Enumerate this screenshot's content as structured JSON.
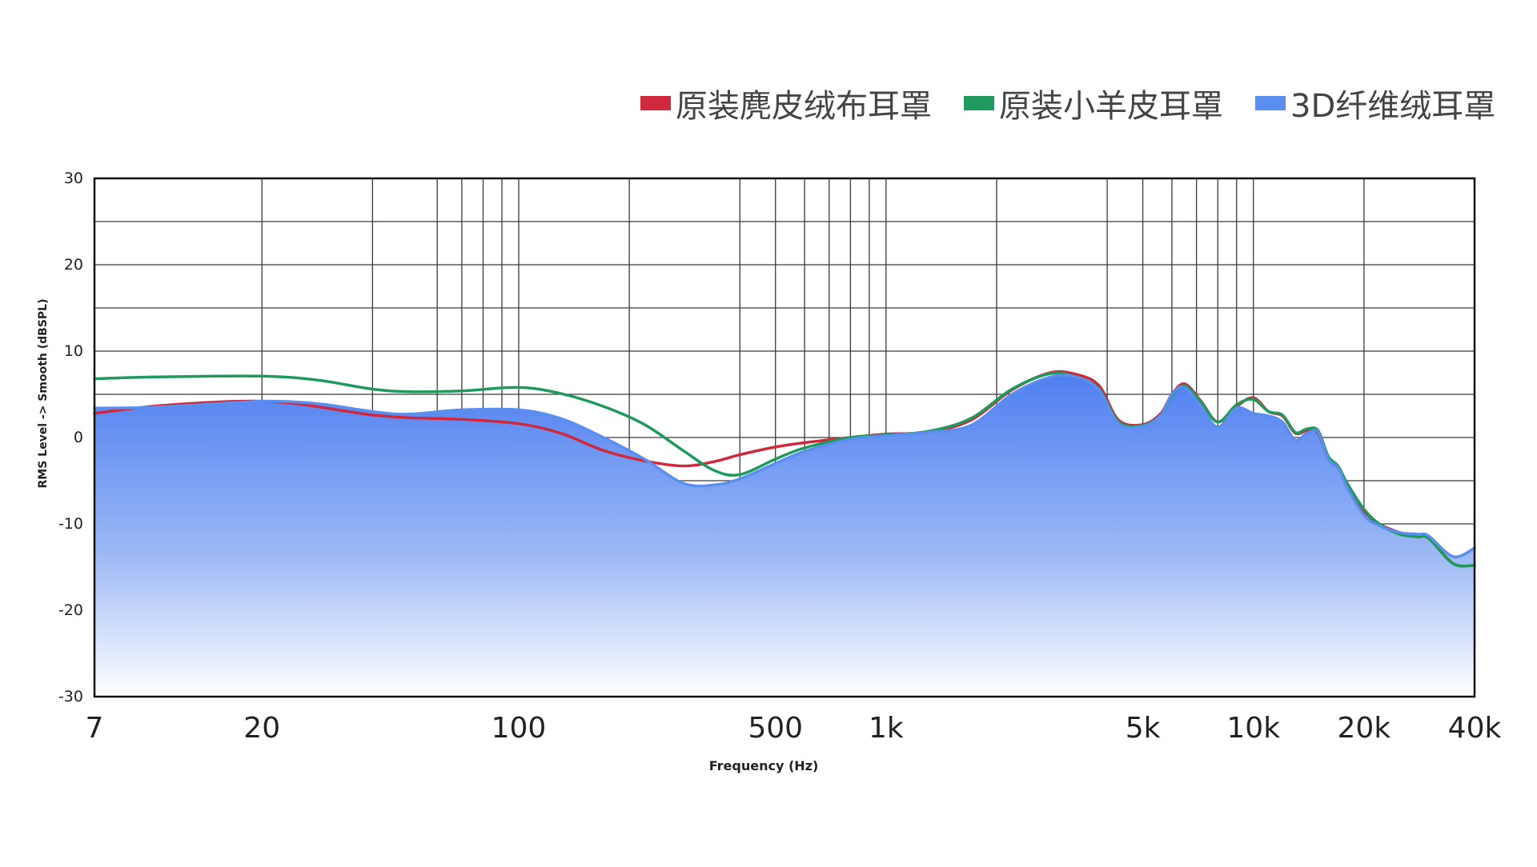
{
  "chart_data": {
    "type": "line",
    "title": "",
    "xlabel": "Frequency (Hz)",
    "ylabel": "RMS Level -> Smooth (dBSPL)",
    "x_scale": "log",
    "xlim": [
      7,
      40000
    ],
    "ylim": [
      -30,
      30
    ],
    "grid": true,
    "legend_position": "top-right",
    "x_tick_labels": [
      {
        "value": 7,
        "label": "7"
      },
      {
        "value": 20,
        "label": "20"
      },
      {
        "value": 100,
        "label": "100"
      },
      {
        "value": 500,
        "label": "500"
      },
      {
        "value": 1000,
        "label": "1k"
      },
      {
        "value": 5000,
        "label": "5k"
      },
      {
        "value": 10000,
        "label": "10k"
      },
      {
        "value": 20000,
        "label": "20k"
      },
      {
        "value": 40000,
        "label": "40k"
      }
    ],
    "x_grid_lines": [
      20,
      40,
      60,
      70,
      80,
      90,
      100,
      200,
      400,
      500,
      600,
      700,
      800,
      900,
      1000,
      2000,
      4000,
      5000,
      6000,
      7000,
      8000,
      9000,
      10000,
      20000
    ],
    "y_ticks": [
      30,
      20,
      10,
      0,
      -10,
      -20,
      -30
    ],
    "y_grid_lines": [
      25,
      20,
      15,
      10,
      5,
      0,
      -5,
      -10,
      -15,
      -20,
      -25
    ],
    "series": [
      {
        "name": "原装麂皮绒布耳罩",
        "color": "#d0283c",
        "fill": false,
        "x": [
          7,
          10,
          15,
          20,
          25,
          30,
          40,
          50,
          70,
          100,
          130,
          170,
          220,
          280,
          340,
          400,
          500,
          600,
          800,
          1000,
          1300,
          1700,
          2200,
          2800,
          3300,
          3800,
          4300,
          5000,
          5600,
          6000,
          6500,
          7200,
          8000,
          9000,
          10000,
          11000,
          12000,
          13000,
          14000,
          15000,
          16000,
          17000,
          18000,
          20000,
          22000,
          25000,
          28000,
          30000,
          35000,
          40000
        ],
        "y": [
          2.8,
          3.6,
          4.1,
          4.2,
          3.9,
          3.4,
          2.6,
          2.3,
          2.1,
          1.6,
          0.5,
          -1.5,
          -2.7,
          -3.3,
          -2.8,
          -2.0,
          -1.1,
          -0.6,
          0.0,
          0.4,
          0.6,
          2.0,
          5.5,
          7.5,
          7.3,
          6.0,
          2.0,
          1.5,
          2.8,
          5.0,
          6.2,
          4.2,
          1.8,
          3.6,
          4.6,
          3.0,
          2.5,
          0.5,
          0.8,
          0.5,
          -2.5,
          -3.5,
          -5.5,
          -8.5,
          -10.0,
          -11.0,
          -11.5,
          -11.6,
          -14.6,
          -14.8
        ]
      },
      {
        "name": "原装小羊皮耳罩",
        "color": "#1f9a5c",
        "fill": false,
        "x": [
          7,
          10,
          15,
          20,
          25,
          30,
          40,
          50,
          70,
          100,
          130,
          170,
          220,
          280,
          340,
          400,
          500,
          600,
          800,
          1000,
          1300,
          1700,
          2200,
          2800,
          3300,
          3800,
          4300,
          5000,
          5600,
          6000,
          6500,
          7200,
          8000,
          9000,
          10000,
          11000,
          12000,
          13000,
          14000,
          15000,
          16000,
          17000,
          18000,
          20000,
          22000,
          25000,
          28000,
          30000,
          35000,
          40000
        ],
        "y": [
          6.8,
          7.0,
          7.1,
          7.1,
          6.9,
          6.5,
          5.6,
          5.3,
          5.4,
          5.8,
          5.1,
          3.6,
          1.5,
          -1.5,
          -3.8,
          -4.3,
          -2.5,
          -1.2,
          0.0,
          0.3,
          0.7,
          2.2,
          5.6,
          7.4,
          7.0,
          5.6,
          1.8,
          1.4,
          2.6,
          4.8,
          6.0,
          4.1,
          1.8,
          3.8,
          4.4,
          3.0,
          2.6,
          0.6,
          1.0,
          0.8,
          -2.2,
          -3.3,
          -5.3,
          -8.3,
          -10.0,
          -11.2,
          -11.5,
          -11.7,
          -14.6,
          -14.8
        ]
      },
      {
        "name": "3D纤维绒耳罩",
        "color": "#5a8ff0",
        "fill": true,
        "x": [
          7,
          10,
          15,
          20,
          25,
          30,
          40,
          50,
          70,
          100,
          130,
          170,
          220,
          280,
          340,
          400,
          500,
          600,
          800,
          1000,
          1300,
          1700,
          2200,
          2800,
          3300,
          3800,
          4300,
          5000,
          5600,
          6000,
          6500,
          7200,
          8000,
          9000,
          10000,
          11000,
          12000,
          13000,
          14000,
          15000,
          16000,
          17000,
          18000,
          20000,
          22000,
          25000,
          28000,
          30000,
          35000,
          40000
        ],
        "y": [
          3.4,
          3.5,
          3.9,
          4.2,
          4.1,
          3.8,
          3.0,
          2.7,
          3.2,
          3.2,
          2.2,
          0.0,
          -2.5,
          -5.3,
          -5.5,
          -4.8,
          -3.0,
          -1.6,
          -0.2,
          0.2,
          0.6,
          1.4,
          5.0,
          7.0,
          7.0,
          5.5,
          1.6,
          1.3,
          2.6,
          5.0,
          5.8,
          3.6,
          1.2,
          3.4,
          2.8,
          2.5,
          1.8,
          -0.3,
          0.5,
          0.6,
          -2.5,
          -3.5,
          -5.8,
          -9.0,
          -10.2,
          -11.0,
          -11.2,
          -11.4,
          -13.8,
          -12.8
        ]
      }
    ]
  }
}
